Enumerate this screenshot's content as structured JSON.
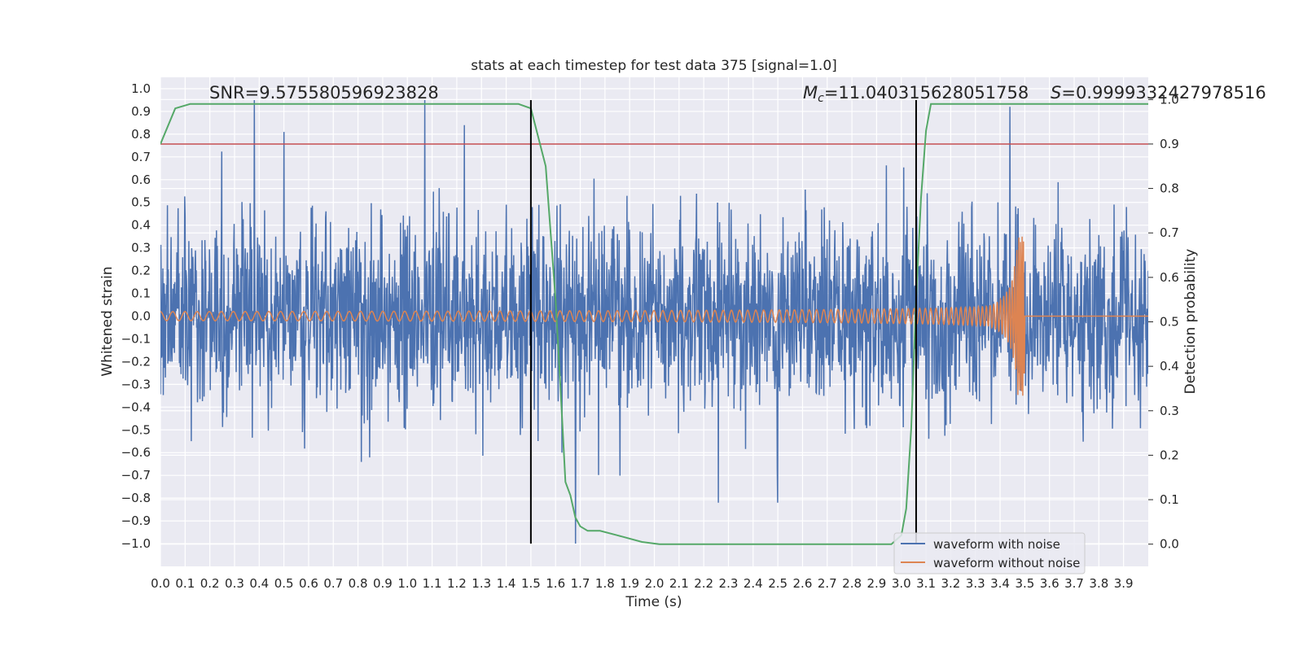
{
  "chart_data": {
    "type": "line",
    "title": "stats at each timestep for test data 375 [signal=1.0]",
    "xlabel": "Time (s)",
    "ylabel": "Whitened strain",
    "y2label": "Detection probability",
    "xlim": [
      0.0,
      4.0
    ],
    "ylim": [
      -1.1,
      1.05
    ],
    "y2lim": [
      -0.05,
      1.05
    ],
    "grid": true,
    "x_ticks": [
      0.0,
      0.1,
      0.2,
      0.3,
      0.4,
      0.5,
      0.6,
      0.7,
      0.8,
      0.9,
      1.0,
      1.1,
      1.2,
      1.3,
      1.4,
      1.5,
      1.6,
      1.7,
      1.8,
      1.9,
      2.0,
      2.1,
      2.2,
      2.3,
      2.4,
      2.5,
      2.6,
      2.7,
      2.8,
      2.9,
      3.0,
      3.1,
      3.2,
      3.3,
      3.4,
      3.5,
      3.6,
      3.7,
      3.8,
      3.9
    ],
    "x_tick_labels": [
      "0.0",
      "0.1",
      "0.2",
      "0.3",
      "0.4",
      "0.5",
      "0.6",
      "0.7",
      "0.8",
      "0.9",
      "1.0",
      "1.1",
      "1.2",
      "1.3",
      "1.4",
      "1.5",
      "1.6",
      "1.7",
      "1.8",
      "1.9",
      "2.0",
      "2.1",
      "2.2",
      "2.3",
      "2.4",
      "2.5",
      "2.6",
      "2.7",
      "2.8",
      "2.9",
      "3.0",
      "3.1",
      "3.2",
      "3.3",
      "3.4",
      "3.5",
      "3.6",
      "3.7",
      "3.8",
      "3.9"
    ],
    "y_ticks": [
      1.0,
      0.9,
      0.8,
      0.7,
      0.6,
      0.5,
      0.4,
      0.3,
      0.2,
      0.1,
      0.0,
      -0.1,
      -0.2,
      -0.3,
      -0.4,
      -0.5,
      -0.6,
      -0.7,
      -0.8,
      -0.9,
      -1.0
    ],
    "y_tick_labels": [
      "1.0",
      "0.9",
      "0.8",
      "0.7",
      "0.6",
      "0.5",
      "0.4",
      "0.3",
      "0.2",
      "0.1",
      "0.0",
      "−0.1",
      "−0.2",
      "−0.3",
      "−0.4",
      "−0.5",
      "−0.6",
      "−0.7",
      "−0.8",
      "−0.9",
      "−1.0"
    ],
    "y2_ticks": [
      1.0,
      0.9,
      0.8,
      0.7,
      0.6,
      0.5,
      0.4,
      0.3,
      0.2,
      0.1,
      0.0
    ],
    "y2_tick_labels": [
      "1.0",
      "0.9",
      "0.8",
      "0.7",
      "0.6",
      "0.5",
      "0.4",
      "0.3",
      "0.2",
      "0.1",
      "0.0"
    ],
    "annotations": {
      "snr": "SNR=9.575580596923828",
      "mc_symbol": "M",
      "mc_subscript": "c",
      "mc_value": "=11.040315628051758",
      "s_symbol": "S",
      "s_value": "=0.9999332427978516"
    },
    "noisy_waveform": {
      "name": "waveform with noise",
      "color": "#4c72b0",
      "typical_amplitude": 0.35,
      "spikes": [
        {
          "x": 0.38,
          "y": 0.95
        },
        {
          "x": 1.07,
          "y": 0.95
        },
        {
          "x": 1.23,
          "y": 0.84
        },
        {
          "x": 0.5,
          "y": 0.81
        },
        {
          "x": 3.44,
          "y": 0.92
        },
        {
          "x": 1.68,
          "y": -1.0
        },
        {
          "x": 2.26,
          "y": -0.82
        },
        {
          "x": 2.5,
          "y": -0.82
        }
      ]
    },
    "clean_waveform": {
      "name": "waveform without noise",
      "color": "#dd8452",
      "t_merger": 3.5,
      "peak_amplitude": 0.35,
      "base_amplitude": 0.02
    },
    "probability_series": {
      "name": "detection probability",
      "color": "#55a868",
      "axis": "y2",
      "x": [
        0.0,
        0.06,
        0.12,
        0.2,
        0.4,
        0.8,
        1.2,
        1.45,
        1.5,
        1.56,
        1.6,
        1.62,
        1.64,
        1.66,
        1.68,
        1.7,
        1.73,
        1.78,
        1.85,
        1.95,
        2.02,
        2.5,
        2.9,
        2.96,
        3.0,
        3.02,
        3.04,
        3.06,
        3.08,
        3.1,
        3.12,
        3.2,
        4.0
      ],
      "values": [
        0.9,
        0.98,
        0.99,
        0.99,
        0.99,
        0.99,
        0.99,
        0.99,
        0.98,
        0.85,
        0.55,
        0.35,
        0.14,
        0.11,
        0.06,
        0.04,
        0.03,
        0.03,
        0.02,
        0.005,
        0.0,
        0.0,
        0.0,
        0.0,
        0.02,
        0.08,
        0.26,
        0.55,
        0.78,
        0.93,
        0.99,
        0.99,
        0.99
      ]
    },
    "threshold_line": {
      "value": 0.9,
      "axis": "y2",
      "color": "#c44e52"
    },
    "vertical_lines": [
      1.5,
      3.06
    ],
    "legend": {
      "position": "lower-right",
      "entries": [
        {
          "label": "waveform with noise",
          "color": "#4c72b0"
        },
        {
          "label": "waveform without noise",
          "color": "#dd8452"
        }
      ]
    }
  }
}
